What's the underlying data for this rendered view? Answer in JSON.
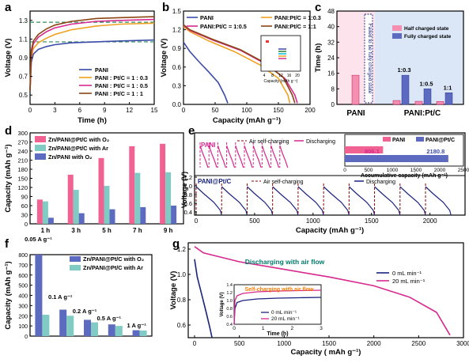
{
  "chart_data": [
    {
      "type": "line",
      "panel": "a",
      "xlabel": "Time (h)",
      "ylabel": "Voltage (V)",
      "xlim": [
        0,
        15
      ],
      "ylim": [
        0.4,
        1.4
      ],
      "xticks": [
        "0",
        "3",
        "6",
        "9",
        "12",
        "15"
      ],
      "yticks": [
        "0.5",
        "0.7",
        "0.9",
        "1.1",
        "1.3"
      ],
      "reference_lines": [
        1.28,
        1.07
      ],
      "series": [
        {
          "name": "PANI",
          "color": "#3a4ba8",
          "x": [
            0,
            0.15,
            0.4,
            1,
            2,
            3,
            5,
            8,
            11,
            15
          ],
          "y": [
            0.55,
            0.85,
            0.94,
            0.99,
            1.02,
            1.04,
            1.06,
            1.07,
            1.08,
            1.09
          ]
        },
        {
          "name": "PANI : Pt/C = 1 : 0.3",
          "color": "#f0a020",
          "x": [
            0,
            0.15,
            0.4,
            1,
            2,
            3,
            5,
            8,
            11,
            15
          ],
          "y": [
            0.55,
            0.9,
            1.0,
            1.06,
            1.11,
            1.15,
            1.2,
            1.24,
            1.26,
            1.27
          ]
        },
        {
          "name": "PANI : Pt/C = 1 : 0.5",
          "color": "#d6288f",
          "x": [
            0,
            0.15,
            0.4,
            1,
            2,
            3,
            5,
            8,
            11,
            15
          ],
          "y": [
            0.55,
            0.95,
            1.05,
            1.12,
            1.18,
            1.22,
            1.26,
            1.29,
            1.3,
            1.31
          ]
        },
        {
          "name": "PANI : Pt/C = 1 : 1",
          "color": "#8b4513",
          "x": [
            0,
            0.15,
            0.4,
            1,
            2,
            3,
            5,
            8,
            11,
            15
          ],
          "y": [
            0.55,
            0.98,
            1.08,
            1.15,
            1.21,
            1.25,
            1.29,
            1.32,
            1.33,
            1.34
          ]
        }
      ]
    },
    {
      "type": "line",
      "panel": "b",
      "xlabel": "Capacity (mAh g⁻¹)",
      "ylabel": "Voltage (V)",
      "xlim": [
        0,
        200
      ],
      "ylim": [
        0.0,
        1.5
      ],
      "xticks": [
        "0",
        "50",
        "100",
        "150",
        "200"
      ],
      "yticks": [
        "0.0",
        "0.3",
        "0.6",
        "0.9",
        "1.2",
        "1.5"
      ],
      "inset": {
        "xlabel": "Capacity (mAh g⁻¹)",
        "xticks": [
          "4",
          "8",
          "12",
          "16",
          "20"
        ]
      },
      "series": [
        {
          "name": "PANI",
          "color": "#3a4ba8",
          "x": [
            0,
            10,
            25,
            40,
            55,
            65,
            70
          ],
          "y": [
            1.0,
            0.85,
            0.68,
            0.52,
            0.35,
            0.15,
            0.02
          ]
        },
        {
          "name": "PANI:Pt/C = 1:0.3",
          "color": "#f0a020",
          "x": [
            0,
            10,
            40,
            80,
            120,
            150,
            165,
            168
          ],
          "y": [
            1.25,
            1.17,
            1.02,
            0.85,
            0.64,
            0.42,
            0.15,
            0.02
          ]
        },
        {
          "name": "PANI:Pt/C = 1:0.5",
          "color": "#d6288f",
          "x": [
            0,
            10,
            45,
            90,
            130,
            160,
            176,
            180
          ],
          "y": [
            1.27,
            1.19,
            1.04,
            0.87,
            0.65,
            0.42,
            0.15,
            0.02
          ]
        },
        {
          "name": "PANI:Pt/C = 1:1",
          "color": "#8b4513",
          "x": [
            0,
            10,
            45,
            90,
            130,
            158,
            172,
            176
          ],
          "y": [
            1.28,
            1.2,
            1.05,
            0.88,
            0.66,
            0.43,
            0.15,
            0.02
          ]
        }
      ]
    },
    {
      "type": "bar",
      "panel": "c",
      "ylabel": "Time (h)",
      "ylim": [
        0,
        48
      ],
      "yticks": [
        "0",
        "8",
        "16",
        "24",
        "32",
        "40",
        "48"
      ],
      "categories": [
        "PANI",
        "1:0.3",
        "1:0.5",
        "1:1"
      ],
      "group_labels": [
        "PANI",
        "PANI:Pt/C"
      ],
      "annotation": "Failed to be fully charged state",
      "series": [
        {
          "name": "Half charged state",
          "color": "#f48fb1",
          "values": [
            15,
            2,
            1.6,
            1.5
          ]
        },
        {
          "name": "Fully charged state",
          "color": "#5c6bc0",
          "values": [
            0,
            15,
            8,
            6
          ]
        }
      ]
    },
    {
      "type": "bar",
      "panel": "d",
      "ylabel": "Capacity (mAh g⁻¹)",
      "ylim": [
        0,
        300
      ],
      "yticks": [
        "0",
        "30",
        "60",
        "90",
        "120",
        "150",
        "180",
        "210",
        "240",
        "270",
        "300"
      ],
      "categories": [
        "1 h",
        "3 h",
        "5 h",
        "7 h",
        "9 h"
      ],
      "series": [
        {
          "name": "Zn/PANI@Pt/C with O₂",
          "color": "#f06292",
          "values": [
            80,
            162,
            217,
            256,
            264
          ]
        },
        {
          "name": "Zn/PANI@Pt/C with Ar",
          "color": "#80cbc4",
          "values": [
            74,
            112,
            125,
            168,
            170
          ]
        },
        {
          "name": "Zn/PANI with O₂",
          "color": "#5c6bc0",
          "values": [
            20,
            35,
            48,
            55,
            60
          ]
        }
      ]
    },
    {
      "type": "line",
      "panel": "e",
      "xlabel": "Capacity (mAh g⁻¹)",
      "ylabel": "Voltage (V)",
      "xticks": [
        "0",
        "500",
        "1000",
        "1500",
        "2000"
      ],
      "yticks": [
        "0.4",
        "0.6",
        "0.8",
        "1.0",
        "1.2"
      ],
      "top_label": "PANI",
      "bottom_label": "PANI@Pt/C",
      "legend_top": [
        "Air self-charging",
        "Discharging"
      ],
      "legend_bottom": [
        "Air self-charging",
        "Discharging"
      ],
      "cycles_top": 10,
      "cycles_bottom": 10,
      "inset": {
        "type": "bar",
        "xlabel": "Accumulative capacity (mAh g⁻¹)",
        "xticks": [
          "0",
          "500",
          "1000",
          "1500",
          "2000",
          "2500"
        ],
        "series": [
          {
            "name": "PANI",
            "color": "#f06292",
            "value": 806.1,
            "label": "806.1"
          },
          {
            "name": "PANI@Pt/C",
            "color": "#5c6bc0",
            "value": 2180.8,
            "label": "2180.8"
          }
        ]
      }
    },
    {
      "type": "bar",
      "panel": "f",
      "ylabel": "Capacity (mAh g⁻¹)",
      "ylim": [
        0,
        800
      ],
      "yticks": [
        "0",
        "100",
        "200",
        "300",
        "400",
        "500",
        "600",
        "700",
        "800"
      ],
      "categories": [
        "0.05 A g⁻¹",
        "0.1 A g⁻¹",
        "0.2 A g⁻¹",
        "0.5 A g⁻¹",
        "1 A g⁻¹"
      ],
      "series": [
        {
          "name": "Zn/PANI@Pt/C with O₂",
          "color": "#5c6bc0",
          "values": [
            800,
            260,
            160,
            115,
            58
          ]
        },
        {
          "name": "Zn/PANI@Pt/C with Ar",
          "color": "#80cbc4",
          "values": [
            210,
            200,
            135,
            100,
            55
          ]
        }
      ]
    },
    {
      "type": "line",
      "panel": "g",
      "xlabel": "Capacity ( mAh g⁻¹)",
      "ylabel": "Voltage (V)",
      "xlim": [
        0,
        3000
      ],
      "ylim": [
        0.5,
        1.25
      ],
      "xticks": [
        "0",
        "500",
        "1000",
        "1500",
        "2000",
        "2500",
        "3000"
      ],
      "yticks": [
        "0.6",
        "0.8",
        "1.0",
        "1.2"
      ],
      "annotation": "Discharging with air flow",
      "series": [
        {
          "name": "0 mL min⁻¹",
          "color": "#1a237e",
          "x": [
            0,
            30,
            80,
            130,
            170,
            195
          ],
          "y": [
            1.12,
            0.98,
            0.84,
            0.7,
            0.58,
            0.5
          ]
        },
        {
          "name": "20 mL min⁻¹",
          "color": "#d6288f",
          "x": [
            0,
            100,
            500,
            1000,
            1500,
            2000,
            2400,
            2700,
            2850
          ],
          "y": [
            1.22,
            1.17,
            1.1,
            1.04,
            0.98,
            0.91,
            0.82,
            0.7,
            0.52
          ]
        }
      ],
      "inset": {
        "title": "Self-charging with air flow",
        "xlabel": "Time (h)",
        "ylabel": "Voltage (V)",
        "xticks": [
          "0",
          "1",
          "2",
          "3"
        ],
        "yticks": [
          "0.4",
          "0.6",
          "0.8",
          "1.0",
          "1.2",
          "1.4"
        ],
        "legend": [
          "0 mL min⁻¹",
          "20 mL min⁻¹"
        ]
      }
    }
  ]
}
